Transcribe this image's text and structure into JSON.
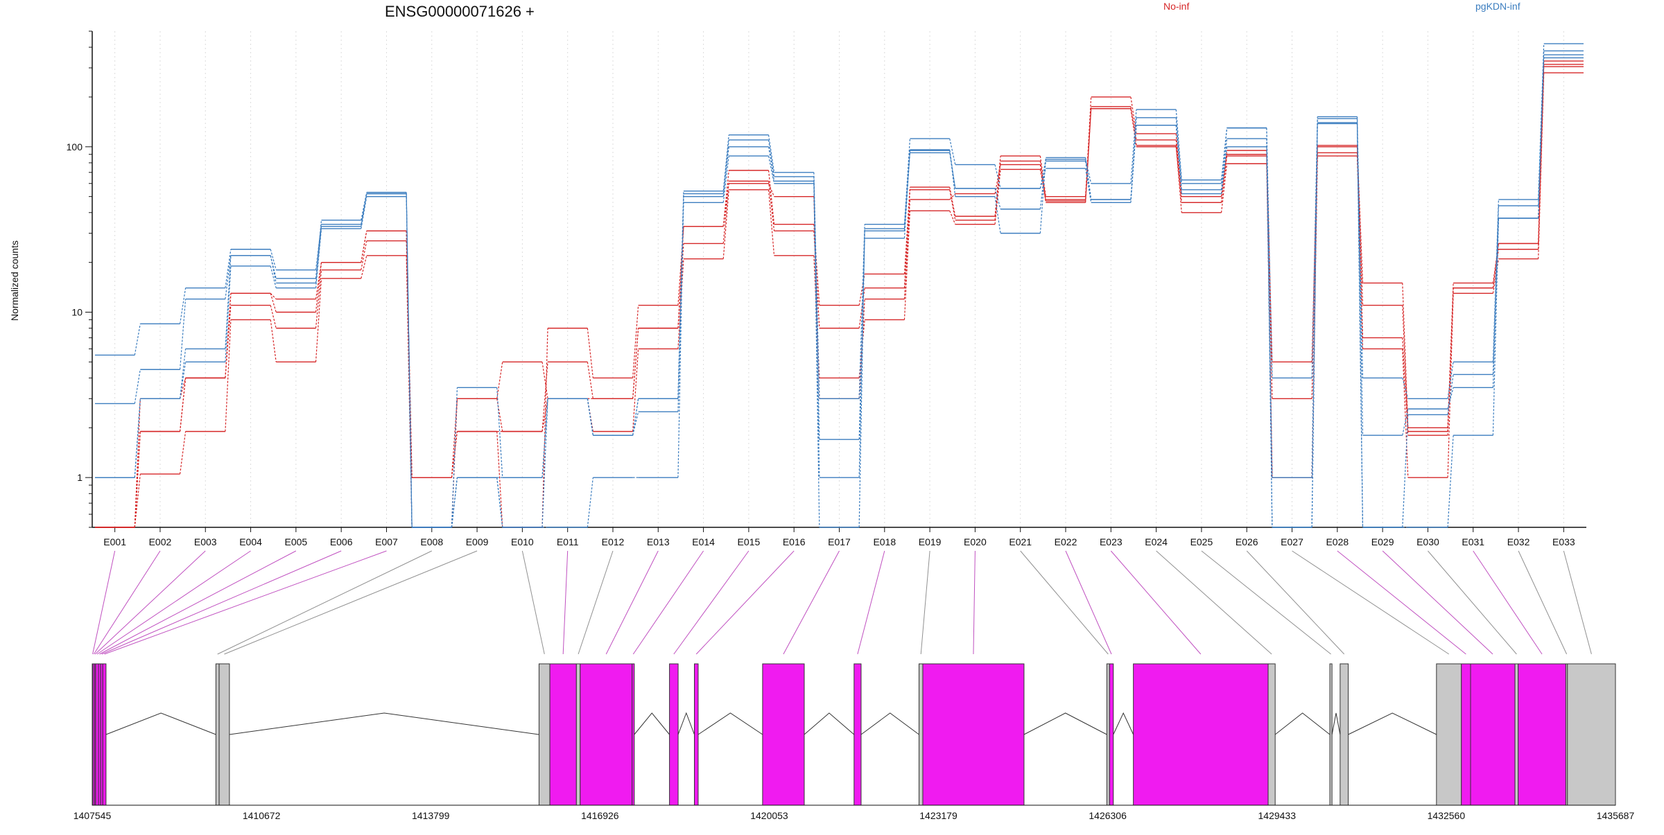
{
  "chart_data": {
    "type": "line",
    "title": "ENSG00000071626 +",
    "ylabel": "Normalized counts",
    "xlabel": "",
    "yscale": "log",
    "ylim": [
      0.5,
      500
    ],
    "ytick_labels": [
      "1",
      "10",
      "100"
    ],
    "legend_placement": "top",
    "grid": "vertical dotted lines at each exon",
    "categories": [
      "E001",
      "E002",
      "E003",
      "E004",
      "E005",
      "E006",
      "E007",
      "E008",
      "E009",
      "E010",
      "E011",
      "E012",
      "E013",
      "E014",
      "E015",
      "E016",
      "E017",
      "E018",
      "E019",
      "E020",
      "E021",
      "E022",
      "E023",
      "E024",
      "E025",
      "E026",
      "E027",
      "E028",
      "E029",
      "E030",
      "E031",
      "E032",
      "E033"
    ],
    "groups": [
      {
        "name": "No-inf",
        "color": "#d62728"
      },
      {
        "name": "pgKDN-inf",
        "color": "#3b7dbf"
      }
    ],
    "series": [
      {
        "group": "No-inf",
        "values": [
          0.5,
          1.9,
          4,
          13,
          10,
          20,
          31,
          1,
          1.9,
          0.5,
          8,
          4,
          11,
          33,
          72,
          34,
          11,
          17,
          57,
          38,
          88,
          50,
          200,
          120,
          50,
          90,
          5,
          102,
          15,
          2,
          15,
          26,
          330
        ]
      },
      {
        "group": "No-inf",
        "values": [
          0.5,
          1.9,
          4,
          11,
          8,
          18,
          27,
          1,
          1.9,
          1.9,
          5,
          3,
          8,
          26,
          62,
          31,
          8,
          14,
          55,
          36,
          82,
          48,
          175,
          110,
          46,
          95,
          3,
          100,
          11,
          1.9,
          14,
          26,
          315
        ]
      },
      {
        "group": "No-inf",
        "values": [
          0.5,
          1.05,
          1.9,
          9,
          5,
          16,
          22,
          0.5,
          3,
          5,
          3,
          1.9,
          6,
          21,
          55,
          22,
          4,
          9,
          41,
          34,
          73,
          47,
          170,
          102,
          40,
          79,
          1,
          92,
          6,
          1,
          13,
          21,
          280
        ]
      },
      {
        "group": "No-inf",
        "values": [
          0.5,
          3,
          4,
          13,
          12,
          20,
          31,
          1,
          3,
          1.9,
          3,
          3,
          8,
          33,
          60,
          50,
          3,
          12,
          48,
          52,
          78,
          46,
          170,
          100,
          46,
          88,
          1,
          88,
          7,
          1.8,
          14,
          24,
          305
        ]
      },
      {
        "group": "pgKDN-inf",
        "values": [
          1,
          3,
          6,
          22,
          16,
          36,
          53,
          0.5,
          1,
          0.5,
          3,
          1.8,
          3,
          54,
          118,
          70,
          3,
          34,
          112,
          78,
          56,
          84,
          60,
          168,
          63,
          130,
          4,
          152,
          4,
          3,
          5,
          48,
          420
        ]
      },
      {
        "group": "pgKDN-inf",
        "values": [
          5.5,
          8.5,
          14,
          24,
          18,
          34,
          52,
          0.5,
          3.5,
          1,
          3,
          1.8,
          3,
          50,
          110,
          66,
          1,
          32,
          95,
          56,
          42,
          82,
          48,
          150,
          60,
          130,
          0.5,
          148,
          0.5,
          2.4,
          4.2,
          44,
          380
        ]
      },
      {
        "group": "pgKDN-inf",
        "values": [
          2.8,
          4.5,
          12,
          22,
          15,
          33,
          52,
          0.5,
          1,
          0.5,
          0.5,
          1,
          1,
          52,
          100,
          62,
          1.7,
          28,
          96,
          50,
          30,
          86,
          48,
          135,
          55,
          112,
          0.5,
          140,
          0.5,
          0.5,
          1.8,
          37,
          360
        ]
      },
      {
        "group": "pgKDN-inf",
        "values": [
          1,
          3,
          5,
          19,
          14,
          32,
          50,
          0.5,
          1,
          1,
          3,
          1.8,
          2.5,
          46,
          88,
          60,
          0.5,
          31,
          92,
          56,
          56,
          74,
          46,
          135,
          52,
          100,
          1,
          138,
          1.8,
          2.6,
          3.5,
          37,
          345
        ]
      }
    ]
  },
  "gene_model": {
    "coordinate_labels": [
      "1407545",
      "1410672",
      "1413799",
      "1416926",
      "1420053",
      "1423179",
      "1426306",
      "1429433",
      "1432560",
      "1435687"
    ],
    "range": [
      1407545,
      1435687
    ],
    "fill_colors": {
      "tested": "#f01bf0",
      "untested": "#c8c8c8",
      "border": "#333333",
      "connector_tested": "#c050c0",
      "connector_untested": "#909090"
    },
    "exon_tested": [
      true,
      true,
      true,
      true,
      true,
      true,
      true,
      false,
      false,
      false,
      true,
      false,
      true,
      true,
      true,
      true,
      true,
      true,
      false,
      true,
      false,
      true,
      true,
      false,
      false,
      false,
      false,
      true,
      true,
      false,
      true,
      false,
      false
    ],
    "boxes": [
      {
        "start": 1407545,
        "end": 1407560,
        "fill": "tested"
      },
      {
        "start": 1407560,
        "end": 1407590,
        "fill": "tested"
      },
      {
        "start": 1407590,
        "end": 1407610,
        "fill": "tested"
      },
      {
        "start": 1407610,
        "end": 1407660,
        "fill": "tested"
      },
      {
        "start": 1407660,
        "end": 1407700,
        "fill": "tested"
      },
      {
        "start": 1407700,
        "end": 1407740,
        "fill": "tested"
      },
      {
        "start": 1407740,
        "end": 1407800,
        "fill": "tested"
      },
      {
        "start": 1409830,
        "end": 1409890,
        "fill": "untested"
      },
      {
        "start": 1409890,
        "end": 1410080,
        "fill": "untested"
      },
      {
        "start": 1415800,
        "end": 1416000,
        "fill": "untested"
      },
      {
        "start": 1416000,
        "end": 1416490,
        "fill": "tested"
      },
      {
        "start": 1416490,
        "end": 1416560,
        "fill": "untested"
      },
      {
        "start": 1416560,
        "end": 1417520,
        "fill": "tested"
      },
      {
        "start": 1417520,
        "end": 1417560,
        "fill": "tested"
      },
      {
        "start": 1418210,
        "end": 1418370,
        "fill": "tested"
      },
      {
        "start": 1418670,
        "end": 1418740,
        "fill": "tested"
      },
      {
        "start": 1419930,
        "end": 1420700,
        "fill": "tested"
      },
      {
        "start": 1421620,
        "end": 1421750,
        "fill": "tested"
      },
      {
        "start": 1422820,
        "end": 1422890,
        "fill": "untested"
      },
      {
        "start": 1422890,
        "end": 1424760,
        "fill": "tested"
      },
      {
        "start": 1426290,
        "end": 1426340,
        "fill": "untested"
      },
      {
        "start": 1426340,
        "end": 1426410,
        "fill": "tested"
      },
      {
        "start": 1426780,
        "end": 1429270,
        "fill": "tested"
      },
      {
        "start": 1429270,
        "end": 1429400,
        "fill": "untested"
      },
      {
        "start": 1430410,
        "end": 1430450,
        "fill": "untested"
      },
      {
        "start": 1430600,
        "end": 1430750,
        "fill": "untested"
      },
      {
        "start": 1432380,
        "end": 1432840,
        "fill": "untested"
      },
      {
        "start": 1432840,
        "end": 1433010,
        "fill": "tested"
      },
      {
        "start": 1433010,
        "end": 1433830,
        "fill": "tested"
      },
      {
        "start": 1433830,
        "end": 1433890,
        "fill": "untested"
      },
      {
        "start": 1433890,
        "end": 1434770,
        "fill": "tested"
      },
      {
        "start": 1434770,
        "end": 1434800,
        "fill": "untested"
      },
      {
        "start": 1434800,
        "end": 1435687,
        "fill": "untested"
      }
    ],
    "introns": [
      [
        1407800,
        1409830
      ],
      [
        1410080,
        1415800
      ],
      [
        1417560,
        1418210
      ],
      [
        1418370,
        1418670
      ],
      [
        1418740,
        1419930
      ],
      [
        1420700,
        1421620
      ],
      [
        1421750,
        1422820
      ],
      [
        1424760,
        1426290
      ],
      [
        1426410,
        1426780
      ],
      [
        1429400,
        1430410
      ],
      [
        1430450,
        1430600
      ],
      [
        1430750,
        1432380
      ]
    ]
  }
}
